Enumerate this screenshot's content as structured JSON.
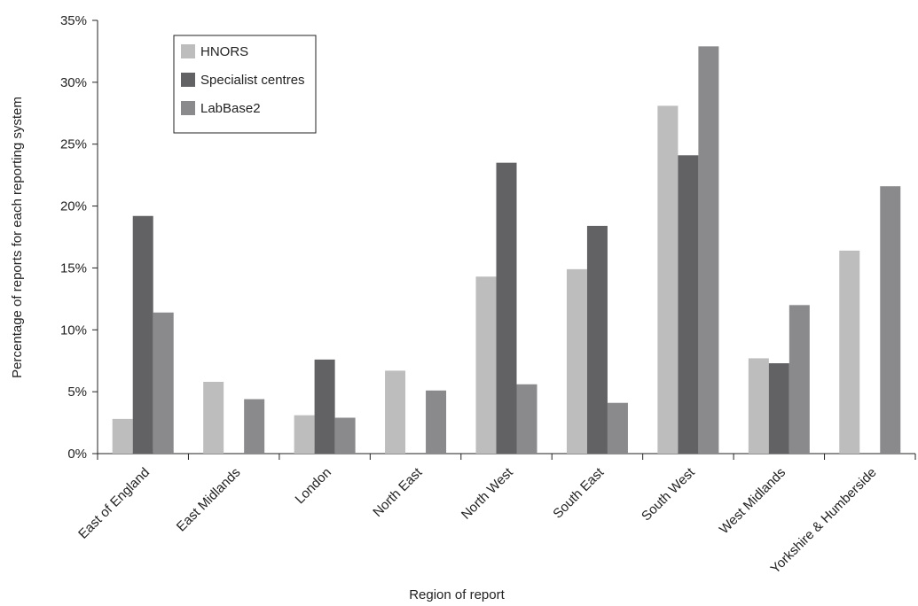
{
  "chart_data": {
    "type": "bar",
    "x_label": "Region of report",
    "y_label": "Percentage of reports for each reporting system",
    "categories": [
      "East of England",
      "East Midlands",
      "London",
      "North East",
      "North West",
      "South East",
      "South West",
      "West Midlands",
      "Yorkshire & Humberside"
    ],
    "series": [
      {
        "name": "HNORS",
        "color": "#bdbdbd",
        "values": [
          2.8,
          5.8,
          3.1,
          6.7,
          14.3,
          14.9,
          28.1,
          7.7,
          16.4
        ]
      },
      {
        "name": "Specialist centres",
        "color": "#626265",
        "values": [
          19.2,
          0,
          7.6,
          0,
          23.5,
          18.4,
          24.1,
          7.3,
          0
        ]
      },
      {
        "name": "LabBase2",
        "color": "#8a8a8c",
        "values": [
          11.4,
          4.4,
          2.9,
          5.1,
          5.6,
          4.1,
          32.9,
          12.0,
          21.6
        ]
      }
    ],
    "ylim": [
      0,
      35
    ],
    "yticks": [
      {
        "value": 0,
        "label": "0%"
      },
      {
        "value": 5,
        "label": "5%"
      },
      {
        "value": 10,
        "label": "10%"
      },
      {
        "value": 15,
        "label": "15%"
      },
      {
        "value": 20,
        "label": "20%"
      },
      {
        "value": 25,
        "label": "25%"
      },
      {
        "value": 30,
        "label": "30%"
      },
      {
        "value": 35,
        "label": "35%"
      }
    ],
    "legend": "upper-left"
  }
}
